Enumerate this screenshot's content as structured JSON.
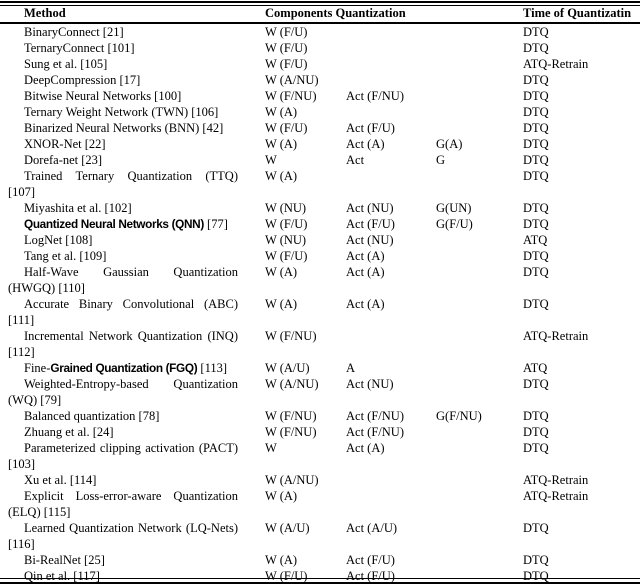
{
  "table": {
    "header": {
      "method": "Method",
      "components": "Components Quantization",
      "time": "Time of Quantizatin"
    },
    "rows": [
      {
        "lines": [
          [
            {
              "t": "BinaryConnect [21]"
            }
          ]
        ],
        "justify": false,
        "w": "W (F/U)",
        "act": "",
        "g": "",
        "time": "DTQ"
      },
      {
        "lines": [
          [
            {
              "t": "TernaryConnect [101]"
            }
          ]
        ],
        "justify": false,
        "w": "W (F/U)",
        "act": "",
        "g": "",
        "time": "DTQ"
      },
      {
        "lines": [
          [
            {
              "t": "Sung et al. [105]"
            }
          ]
        ],
        "justify": false,
        "w": "W (F/U)",
        "act": "",
        "g": "",
        "time": "ATQ-Retrain"
      },
      {
        "lines": [
          [
            {
              "t": "DeepCompression [17]"
            }
          ]
        ],
        "justify": false,
        "w": "W (A/NU)",
        "act": "",
        "g": "",
        "time": "DTQ"
      },
      {
        "lines": [
          [
            {
              "t": "Bitwise Neural Networks [100]"
            }
          ]
        ],
        "justify": false,
        "w": "W (F/NU)",
        "act": "Act (F/NU)",
        "g": "",
        "time": "DTQ"
      },
      {
        "lines": [
          [
            {
              "t": " Ternary Weight Network (TWN) [106]"
            }
          ]
        ],
        "justify": false,
        "w": "W (A)",
        "act": "",
        "g": "",
        "time": "DTQ"
      },
      {
        "lines": [
          [
            {
              "t": "Binarized Neural Networks (BNN) [42]"
            }
          ]
        ],
        "justify": false,
        "w": "W (F/U)",
        "act": "Act (F/U)",
        "g": "",
        "time": "DTQ"
      },
      {
        "lines": [
          [
            {
              "t": "XNOR-Net [22]"
            }
          ]
        ],
        "justify": false,
        "w": "W (A)",
        "act": "Act (A)",
        "g": "G(A)",
        "time": "DTQ"
      },
      {
        "lines": [
          [
            {
              "t": "Dorefa-net [23]"
            }
          ]
        ],
        "justify": false,
        "w": "W",
        "act": "Act",
        "g": "G",
        "time": "DTQ"
      },
      {
        "lines": [
          [
            {
              "t": "Trained Ternary Quantization (TTQ)"
            }
          ],
          [
            {
              "t": "[107]"
            }
          ]
        ],
        "justify": true,
        "w": "W (A)",
        "act": "",
        "g": "",
        "time": "DTQ"
      },
      {
        "lines": [
          [
            {
              "t": "Miyashita et al. [102]"
            }
          ]
        ],
        "justify": false,
        "w": "W (NU)",
        "act": "Act (NU)",
        "g": "G(UN)",
        "time": "DTQ"
      },
      {
        "lines": [
          [
            {
              "t": "Quantized Neural Networks (QNN)",
              "f": "bs"
            },
            {
              "t": " [77]"
            }
          ]
        ],
        "justify": false,
        "w": "W (F/U)",
        "act": "Act (F/U)",
        "g": "G(F/U)",
        "time": "DTQ"
      },
      {
        "lines": [
          [
            {
              "t": "LogNet [108]"
            }
          ]
        ],
        "justify": false,
        "w": "W (NU)",
        "act": "Act (NU)",
        "g": "",
        "time": "ATQ"
      },
      {
        "lines": [
          [
            {
              "t": "Tang et al. [109]"
            }
          ]
        ],
        "justify": false,
        "w": "W (F/U)",
        "act": "Act (A)",
        "g": "",
        "time": "DTQ"
      },
      {
        "lines": [
          [
            {
              "t": "Half-Wave Gaussian Quantization"
            }
          ],
          [
            {
              "t": "(HWGQ) [110]"
            }
          ]
        ],
        "justify": true,
        "w": "W (A)",
        "act": "Act (A)",
        "g": "",
        "time": "DTQ"
      },
      {
        "lines": [
          [
            {
              "t": "Accurate Binary Convolutional (ABC)"
            }
          ],
          [
            {
              "t": "[111]"
            }
          ]
        ],
        "justify": true,
        "w": "W (A)",
        "act": "Act (A)",
        "g": "",
        "time": "DTQ"
      },
      {
        "lines": [
          [
            {
              "t": "Incremental Network Quantization (INQ)"
            }
          ],
          [
            {
              "t": "[112]"
            }
          ]
        ],
        "justify": true,
        "w": "W (F/NU)",
        "act": "",
        "g": "",
        "time": "ATQ-Retrain"
      },
      {
        "lines": [
          [
            {
              "t": "Fine-"
            },
            {
              "t": "Grained Quantization (FGQ)",
              "f": "bs"
            },
            {
              "t": " [113]"
            }
          ]
        ],
        "justify": false,
        "w": "W (A/U)",
        "act": "A",
        "g": "",
        "time": "ATQ"
      },
      {
        "lines": [
          [
            {
              "t": "Weighted-Entropy-based Quantization"
            }
          ],
          [
            {
              "t": "(WQ) [79]"
            }
          ]
        ],
        "justify": true,
        "w": "W (A/NU)",
        "act": "Act (NU)",
        "g": "",
        "time": "DTQ"
      },
      {
        "lines": [
          [
            {
              "t": "Balanced quantization [78]"
            }
          ]
        ],
        "justify": false,
        "w": "W (F/NU)",
        "act": "Act (F/NU)",
        "g": "G(F/NU)",
        "time": "DTQ"
      },
      {
        "lines": [
          [
            {
              "t": "Zhuang et al. [24]"
            }
          ]
        ],
        "justify": false,
        "w": "W (F/NU)",
        "act": "Act (F/NU)",
        "g": "",
        "time": "DTQ"
      },
      {
        "lines": [
          [
            {
              "t": "Parameterized clipping activation (PACT)"
            }
          ],
          [
            {
              "t": "[103]"
            }
          ]
        ],
        "justify": true,
        "w": "W",
        "act": "Act (A)",
        "g": "",
        "time": "DTQ"
      },
      {
        "lines": [
          [
            {
              "t": "Xu et al. [114]"
            }
          ]
        ],
        "justify": false,
        "w": "W (A/NU)",
        "act": "",
        "g": "",
        "time": "ATQ-Retrain"
      },
      {
        "lines": [
          [
            {
              "t": "Explicit Loss-error-aware Quantization"
            }
          ],
          [
            {
              "t": "(ELQ) [115]"
            }
          ]
        ],
        "justify": true,
        "w": "W (A)",
        "act": "",
        "g": "",
        "time": "ATQ-Retrain"
      },
      {
        "lines": [
          [
            {
              "t": "Learned Quantization Network (LQ-Nets)"
            }
          ],
          [
            {
              "t": "[116]"
            }
          ]
        ],
        "justify": true,
        "w": "W (A/U)",
        "act": "Act (A/U)",
        "g": "",
        "time": "DTQ"
      },
      {
        "lines": [
          [
            {
              "t": "Bi-RealNet [25]"
            }
          ]
        ],
        "justify": false,
        "w": "W (A)",
        "act": "Act (F/U)",
        "g": "",
        "time": "DTQ"
      },
      {
        "lines": [
          [
            {
              "t": "Qin et al. [117]"
            }
          ]
        ],
        "justify": false,
        "w": "W (F/U)",
        "act": "Act (F/U)",
        "g": "",
        "time": "DTQ"
      }
    ]
  }
}
